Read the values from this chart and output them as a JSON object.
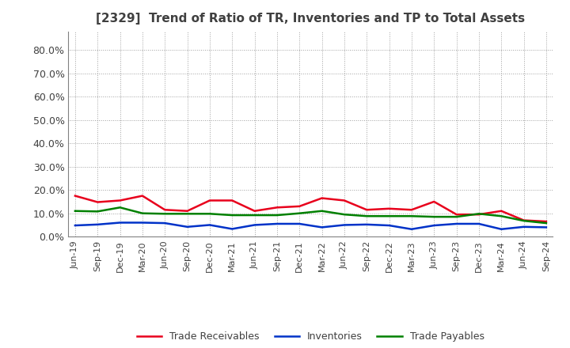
{
  "title": "[2329]  Trend of Ratio of TR, Inventories and TP to Total Assets",
  "labels": [
    "Jun-19",
    "Sep-19",
    "Dec-19",
    "Mar-20",
    "Jun-20",
    "Sep-20",
    "Dec-20",
    "Mar-21",
    "Jun-21",
    "Sep-21",
    "Dec-21",
    "Mar-22",
    "Jun-22",
    "Sep-22",
    "Dec-22",
    "Mar-23",
    "Jun-23",
    "Sep-23",
    "Dec-23",
    "Mar-24",
    "Jun-24",
    "Sep-24"
  ],
  "trade_receivables": [
    0.175,
    0.148,
    0.155,
    0.175,
    0.115,
    0.11,
    0.155,
    0.155,
    0.11,
    0.125,
    0.13,
    0.165,
    0.155,
    0.115,
    0.12,
    0.115,
    0.15,
    0.095,
    0.095,
    0.11,
    0.07,
    0.065
  ],
  "inventories": [
    0.048,
    0.052,
    0.06,
    0.06,
    0.058,
    0.042,
    0.05,
    0.033,
    0.05,
    0.055,
    0.055,
    0.04,
    0.05,
    0.052,
    0.048,
    0.032,
    0.048,
    0.055,
    0.055,
    0.032,
    0.042,
    0.04
  ],
  "trade_payables": [
    0.11,
    0.108,
    0.125,
    0.1,
    0.098,
    0.098,
    0.098,
    0.092,
    0.092,
    0.092,
    0.1,
    0.11,
    0.095,
    0.088,
    0.088,
    0.088,
    0.085,
    0.085,
    0.098,
    0.088,
    0.068,
    0.058
  ],
  "tr_color": "#e8001c",
  "inv_color": "#0032c8",
  "tp_color": "#008000",
  "ylim": [
    0.0,
    0.88
  ],
  "yticks": [
    0.0,
    0.1,
    0.2,
    0.3,
    0.4,
    0.5,
    0.6,
    0.7,
    0.8
  ],
  "ytick_labels": [
    "0.0%",
    "10.0%",
    "20.0%",
    "30.0%",
    "40.0%",
    "50.0%",
    "60.0%",
    "70.0%",
    "80.0%"
  ],
  "legend_labels": [
    "Trade Receivables",
    "Inventories",
    "Trade Payables"
  ],
  "bg_color": "#ffffff",
  "grid_color": "#a0a0a0",
  "title_color": "#404040",
  "tick_color": "#404040"
}
